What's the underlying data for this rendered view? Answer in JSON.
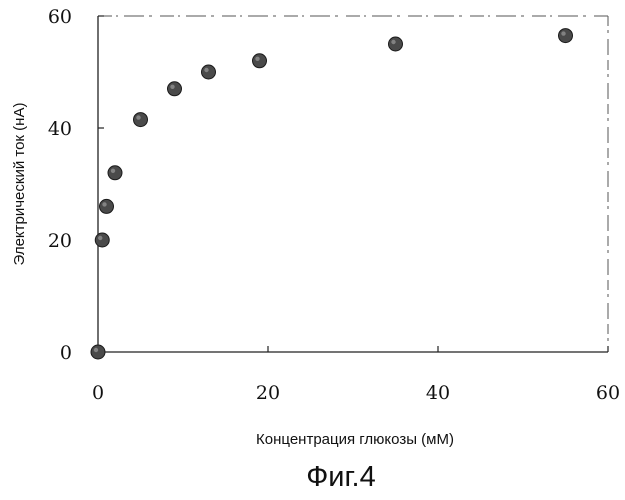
{
  "chart_data": {
    "type": "scatter",
    "title": "",
    "caption": "Фиг.4",
    "xlabel": "Концентрация глюкозы (мМ)",
    "ylabel": "Электрический ток (нА)",
    "xlim": [
      0,
      60
    ],
    "ylim": [
      0,
      60
    ],
    "x_ticks": [
      0,
      20,
      40,
      60
    ],
    "y_ticks": [
      0,
      20,
      40,
      60
    ],
    "grid": false,
    "marker_color": "#4a4a4a",
    "series": [
      {
        "x": [
          0,
          0.5,
          1,
          2,
          5,
          9,
          13,
          19,
          35,
          55
        ],
        "y": [
          0,
          20,
          26,
          32,
          41.5,
          47,
          50,
          52,
          55,
          56.5
        ]
      }
    ]
  }
}
